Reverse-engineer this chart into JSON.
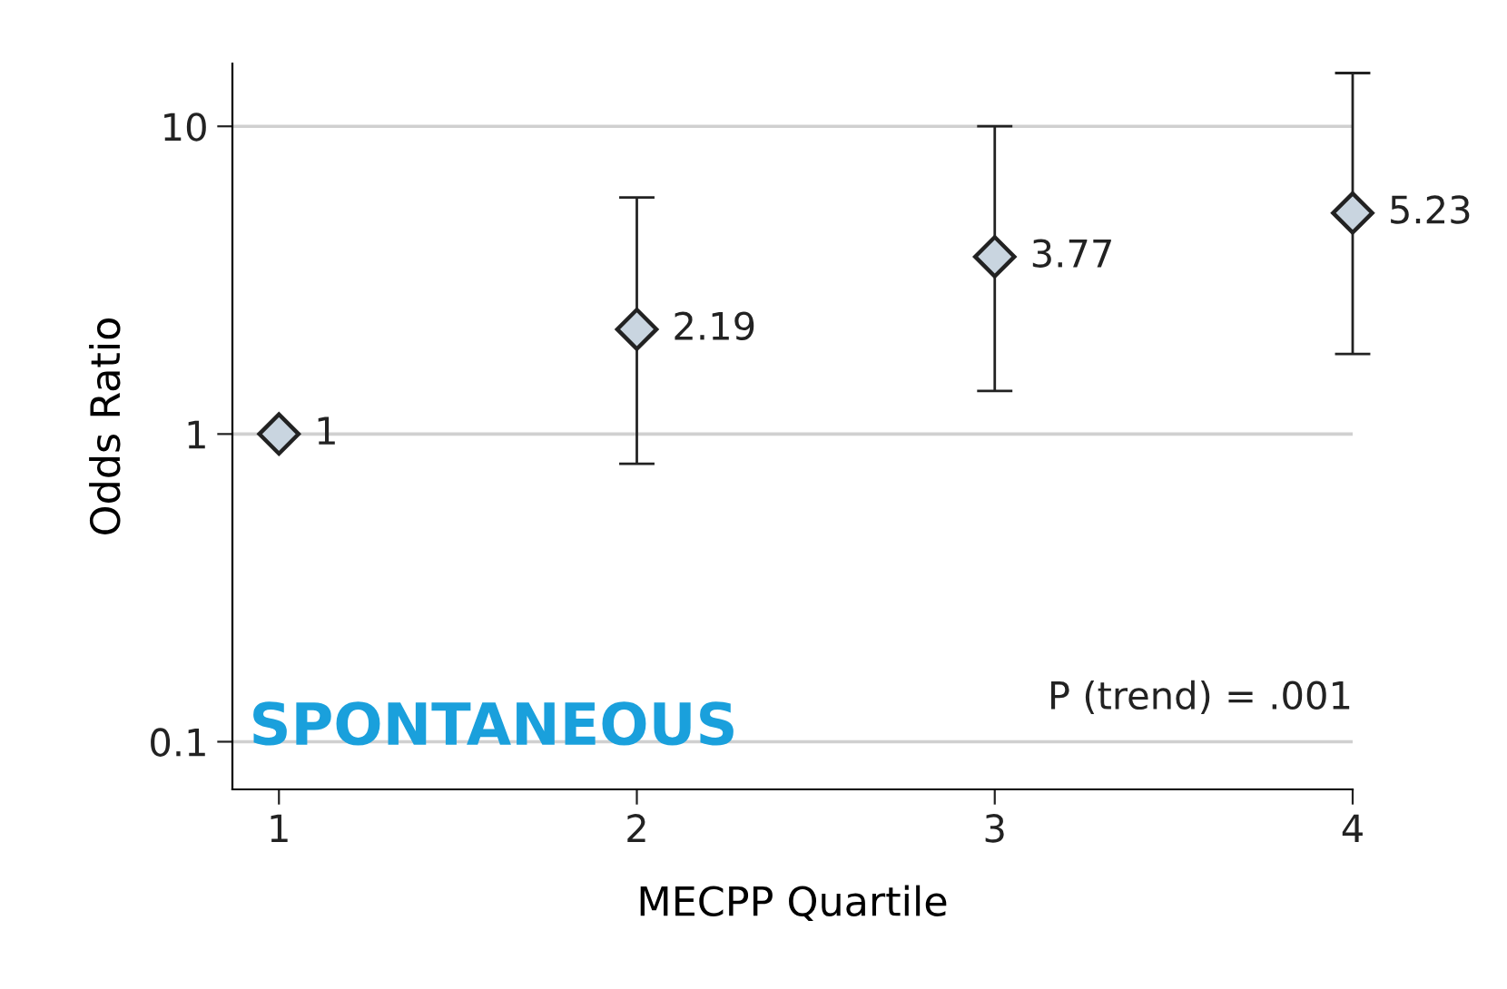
{
  "chart_data": {
    "type": "scatter",
    "xlabel": "MECPP Quartile",
    "ylabel": "Odds Ratio",
    "x": [
      1,
      2,
      3,
      4
    ],
    "series": [
      {
        "color": "#c9d5e0",
        "values": [
          1,
          2.19,
          3.77,
          5.23
        ],
        "errors": [
          null,
          [
            0.8,
            5.87
          ],
          [
            1.38,
            10
          ],
          [
            1.82,
            14.9
          ]
        ]
      }
    ],
    "data_labels": true,
    "marker": "diamond",
    "log": "y",
    "grid": "y",
    "xlim": [
      0.87,
      4
    ],
    "xticks": [
      1,
      2,
      3,
      4
    ],
    "ylim": [
      0.07,
      16
    ],
    "yticks": [
      0.1,
      1,
      10
    ],
    "annotations": [
      "P (trend) = .001",
      "SPONTANEOUS"
    ]
  }
}
